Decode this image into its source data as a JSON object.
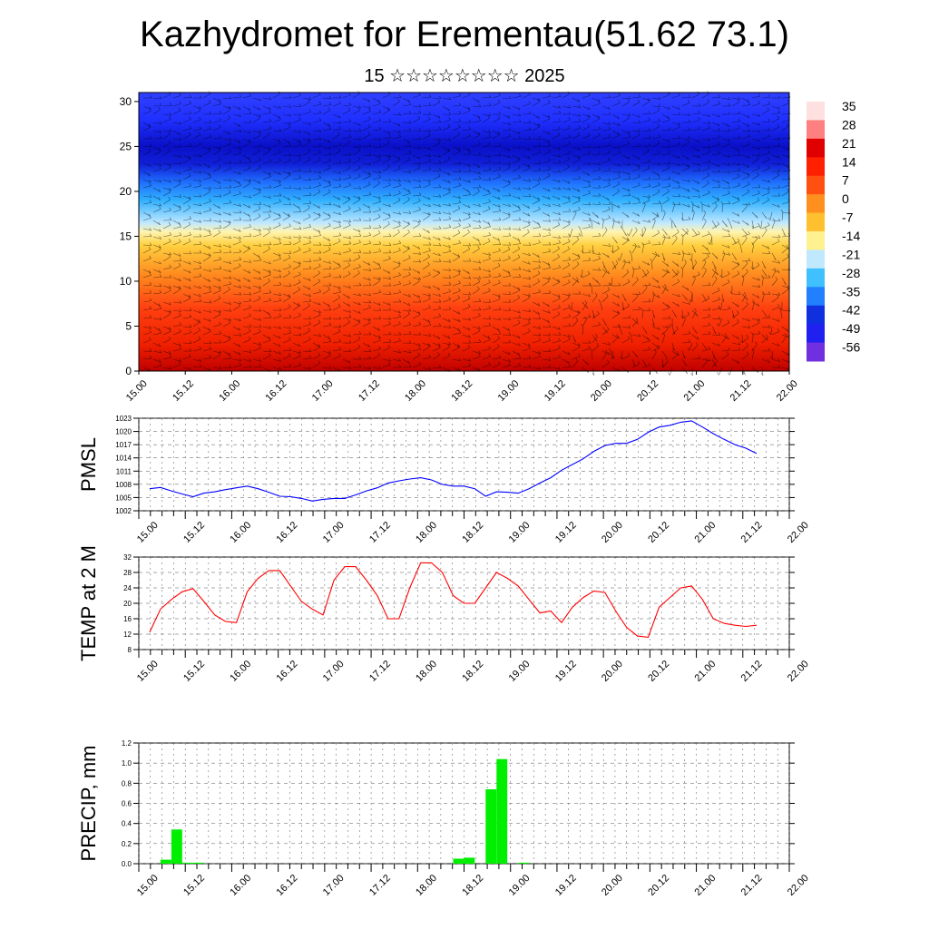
{
  "header": {
    "title": "Kazhydromet for Erementau(51.62 73.1)",
    "subtitle": "15 ☆☆☆☆☆☆☆☆ 2025"
  },
  "chart_data": [
    {
      "type": "heatmap",
      "title": "",
      "xlabel": "",
      "ylabel": "",
      "x_tick_labels": [
        "15.00",
        "15.12",
        "16.00",
        "16.12",
        "17.00",
        "17.12",
        "18.00",
        "18.12",
        "19.00",
        "19.12",
        "20.00",
        "20.12",
        "21.00",
        "21.12",
        "22.00"
      ],
      "y_ticks": [
        0,
        5,
        10,
        15,
        20,
        25,
        30
      ],
      "ylim": [
        0,
        31
      ],
      "colorbar": {
        "labels": [
          "35",
          "28",
          "21",
          "14",
          "7",
          "0",
          "-7",
          "-14",
          "-21",
          "-28",
          "-35",
          "-42",
          "-49",
          "-56"
        ],
        "colors": [
          "#ffffff",
          "#b0b0ff",
          "#3030ff",
          "#1010d0",
          "#3070ff",
          "#20b0ff",
          "#b0e0ff",
          "#fff0a0",
          "#ffd040",
          "#ffa020",
          "#ff6010",
          "#ff2000",
          "#d00000"
        ]
      },
      "field_description_by_height": [
        {
          "height": 0,
          "value": 35
        },
        {
          "height": 5,
          "value": 28
        },
        {
          "height": 10,
          "value": 14
        },
        {
          "height": 15,
          "value": -7
        },
        {
          "height": 20,
          "value": -35
        },
        {
          "height": 25,
          "value": -56
        },
        {
          "height": 30,
          "value": -49
        }
      ],
      "overlay": "wind barbs"
    },
    {
      "type": "line",
      "ylabel": "PMSL",
      "ylim": [
        1002,
        1023
      ],
      "y_ticks": [
        1002,
        1005,
        1008,
        1011,
        1014,
        1017,
        1020,
        1023
      ],
      "x_tick_labels": [
        "15.00",
        "15.12",
        "16.00",
        "16.12",
        "17.00",
        "17.12",
        "18.00",
        "18.12",
        "19.00",
        "19.12",
        "20.00",
        "20.12",
        "21.00",
        "21.12",
        "22.00"
      ],
      "color": "#0000ff",
      "series": [
        {
          "x": [
            0,
            3,
            6,
            9,
            12,
            15,
            18,
            21,
            24,
            27,
            30,
            33,
            36,
            39,
            42,
            45,
            48,
            51,
            54,
            57,
            60,
            63,
            66,
            69,
            72,
            75,
            78,
            81,
            84,
            87,
            90,
            93,
            96,
            99,
            102,
            105,
            108,
            111,
            114,
            117,
            120,
            123,
            126,
            129,
            132,
            135,
            138,
            141,
            144,
            147,
            150,
            153,
            156,
            159,
            162,
            165,
            168
          ],
          "values": [
            1007,
            1007.3,
            1006.5,
            1005.8,
            1005.2,
            1006,
            1006.3,
            1006.8,
            1007.2,
            1007.6,
            1007,
            1006.2,
            1005.3,
            1005.2,
            1004.8,
            1004.2,
            1004.6,
            1004.8,
            1004.8,
            1005.6,
            1006.5,
            1007.2,
            1008.3,
            1008.8,
            1009.2,
            1009.5,
            1009,
            1008,
            1007.6,
            1007.6,
            1007,
            1005.3,
            1006.3,
            1006.2,
            1006,
            1007,
            1008.3,
            1009.5,
            1011.2,
            1012.5,
            1013.8,
            1015.5,
            1016.8,
            1017.3,
            1017.3,
            1018.2,
            1019.8,
            1021,
            1021.4,
            1022.1,
            1022.4,
            1021,
            1019.5,
            1018.2,
            1017,
            1016.2,
            1015
          ]
        }
      ]
    },
    {
      "type": "line",
      "ylabel": "TEMP at 2 M",
      "ylim": [
        8,
        32
      ],
      "y_ticks": [
        8,
        12,
        16,
        20,
        24,
        28,
        32
      ],
      "x_tick_labels": [
        "15.00",
        "15.12",
        "16.00",
        "16.12",
        "17.00",
        "17.12",
        "18.00",
        "18.12",
        "19.00",
        "19.12",
        "20.00",
        "20.12",
        "21.00",
        "21.12",
        "22.00"
      ],
      "color": "#ff0000",
      "series": [
        {
          "x": [
            0,
            3,
            6,
            9,
            12,
            15,
            18,
            21,
            24,
            27,
            30,
            33,
            36,
            39,
            42,
            45,
            48,
            51,
            54,
            57,
            60,
            63,
            66,
            69,
            72,
            75,
            78,
            81,
            84,
            87,
            90,
            93,
            96,
            99,
            102,
            105,
            108,
            111,
            114,
            117,
            120,
            123,
            126,
            129,
            132,
            135,
            138,
            141,
            144,
            147,
            150,
            153,
            156,
            159,
            162,
            165,
            168
          ],
          "values": [
            12.5,
            18.5,
            21,
            23,
            23.8,
            20.5,
            17,
            15.3,
            15,
            23,
            26.5,
            28.5,
            28.5,
            24.5,
            20.5,
            18.5,
            17,
            26,
            29.5,
            29.5,
            26,
            22,
            16,
            16,
            24,
            30.5,
            30.5,
            28,
            22,
            20,
            20,
            24,
            28,
            26.5,
            24.5,
            21,
            17.5,
            18,
            15,
            19,
            21.5,
            23.2,
            22.8,
            18,
            13.8,
            11.5,
            11.2,
            19,
            21.5,
            24,
            24.5,
            21,
            16,
            14.8,
            14.3,
            14,
            14.3
          ]
        }
      ]
    },
    {
      "type": "bar",
      "ylabel": "PRECIP, mm",
      "ylim": [
        0,
        1.2
      ],
      "y_ticks": [
        "0.0",
        "0.2",
        "0.4",
        "0.6",
        "0.8",
        "1.0",
        "1.2"
      ],
      "x_tick_labels": [
        "15.00",
        "15.12",
        "16.00",
        "16.12",
        "17.00",
        "17.12",
        "18.00",
        "18.12",
        "19.00",
        "19.12",
        "20.00",
        "20.12",
        "21.00",
        "21.12",
        "22.00"
      ],
      "color": "#00ee00",
      "bars": [
        {
          "start": 3,
          "end": 6,
          "value": 0.04
        },
        {
          "start": 6,
          "end": 9,
          "value": 0.34
        },
        {
          "start": 9,
          "end": 12,
          "value": 0.01
        },
        {
          "start": 12,
          "end": 15,
          "value": 0.01
        },
        {
          "start": 84,
          "end": 87,
          "value": 0.05
        },
        {
          "start": 87,
          "end": 90,
          "value": 0.06
        },
        {
          "start": 93,
          "end": 96,
          "value": 0.74
        },
        {
          "start": 96,
          "end": 99,
          "value": 1.04
        },
        {
          "start": 102,
          "end": 105,
          "value": 0.01
        }
      ]
    }
  ]
}
